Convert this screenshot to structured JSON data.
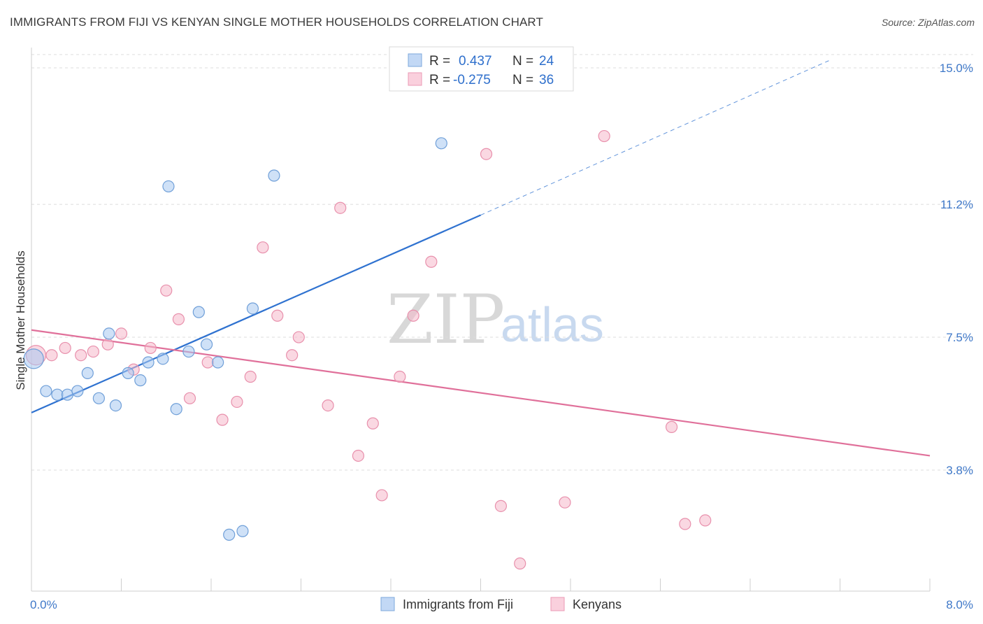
{
  "header": {
    "title": "IMMIGRANTS FROM FIJI VS KENYAN SINGLE MOTHER HOUSEHOLDS CORRELATION CHART",
    "source": "Source: ZipAtlas.com"
  },
  "watermark": {
    "zip": "ZIP",
    "atlas": "atlas"
  },
  "stats_legend": [
    {
      "r_label": "R =",
      "r_value": "0.437",
      "n_label": "N =",
      "n_value": "24",
      "color": "#a8c8f0"
    },
    {
      "r_label": "R =",
      "r_value": "-0.275",
      "n_label": "N =",
      "n_value": "36",
      "color": "#f5b8cb"
    }
  ],
  "chart_data": {
    "type": "scatter",
    "title": "IMMIGRANTS FROM FIJI VS KENYAN SINGLE MOTHER HOUSEHOLDS CORRELATION CHART",
    "xlabel": "",
    "ylabel": "Single Mother Households",
    "xlim": [
      0,
      8
    ],
    "ylim": [
      0,
      15.3
    ],
    "x_tick_labels": [
      {
        "value": 0,
        "label": "0.0%"
      },
      {
        "value": 8,
        "label": "8.0%"
      }
    ],
    "x_minor_ticks": [
      0,
      0.8,
      1.6,
      2.4,
      3.2,
      4.0,
      4.8,
      5.6,
      6.4,
      7.2,
      8.0
    ],
    "y_ticks": [
      {
        "value": 3.8,
        "label": "3.8%"
      },
      {
        "value": 7.5,
        "label": "7.5%"
      },
      {
        "value": 11.2,
        "label": "11.2%"
      },
      {
        "value": 15.0,
        "label": "15.0%"
      }
    ],
    "grid": true,
    "legend_position": "bottom-center",
    "series": [
      {
        "name": "Immigrants from Fiji",
        "color": "#a8c8f0",
        "stroke": "#6f9fd8",
        "trend_color": "#2f72d0",
        "points": [
          {
            "x": 0.02,
            "y": 6.9,
            "big": true
          },
          {
            "x": 0.13,
            "y": 6.0
          },
          {
            "x": 0.23,
            "y": 5.9
          },
          {
            "x": 0.32,
            "y": 5.9
          },
          {
            "x": 0.41,
            "y": 6.0
          },
          {
            "x": 0.5,
            "y": 6.5
          },
          {
            "x": 0.6,
            "y": 5.8
          },
          {
            "x": 0.69,
            "y": 7.6
          },
          {
            "x": 0.75,
            "y": 5.6
          },
          {
            "x": 0.86,
            "y": 6.5
          },
          {
            "x": 0.97,
            "y": 6.3
          },
          {
            "x": 1.04,
            "y": 6.8
          },
          {
            "x": 1.17,
            "y": 6.9
          },
          {
            "x": 1.22,
            "y": 11.7
          },
          {
            "x": 1.29,
            "y": 5.5
          },
          {
            "x": 1.4,
            "y": 7.1
          },
          {
            "x": 1.49,
            "y": 8.2
          },
          {
            "x": 1.56,
            "y": 7.3
          },
          {
            "x": 1.66,
            "y": 6.8
          },
          {
            "x": 1.76,
            "y": 2.0
          },
          {
            "x": 1.88,
            "y": 2.1
          },
          {
            "x": 1.97,
            "y": 8.3
          },
          {
            "x": 2.16,
            "y": 12.0
          },
          {
            "x": 3.65,
            "y": 12.9
          }
        ],
        "trend": {
          "x0": 0,
          "y0": 5.4,
          "x1": 4.0,
          "y1": 10.9,
          "dash_to_x": 7.1,
          "dash_to_y": 15.2
        }
      },
      {
        "name": "Kenyans",
        "color": "#f5b8cb",
        "stroke": "#e890ac",
        "trend_color": "#e0709a",
        "points": [
          {
            "x": 0.04,
            "y": 7.0,
            "big": true
          },
          {
            "x": 0.18,
            "y": 7.0
          },
          {
            "x": 0.3,
            "y": 7.2
          },
          {
            "x": 0.44,
            "y": 7.0
          },
          {
            "x": 0.55,
            "y": 7.1
          },
          {
            "x": 0.68,
            "y": 7.3
          },
          {
            "x": 0.8,
            "y": 7.6
          },
          {
            "x": 0.91,
            "y": 6.6
          },
          {
            "x": 1.06,
            "y": 7.2
          },
          {
            "x": 1.2,
            "y": 8.8
          },
          {
            "x": 1.31,
            "y": 8.0
          },
          {
            "x": 1.41,
            "y": 5.8
          },
          {
            "x": 1.57,
            "y": 6.8
          },
          {
            "x": 1.7,
            "y": 5.2
          },
          {
            "x": 1.83,
            "y": 5.7
          },
          {
            "x": 1.95,
            "y": 6.4
          },
          {
            "x": 2.06,
            "y": 10.0
          },
          {
            "x": 2.19,
            "y": 8.1
          },
          {
            "x": 2.32,
            "y": 7.0
          },
          {
            "x": 2.38,
            "y": 7.5
          },
          {
            "x": 2.64,
            "y": 5.6
          },
          {
            "x": 2.75,
            "y": 11.1
          },
          {
            "x": 2.91,
            "y": 4.2
          },
          {
            "x": 3.04,
            "y": 5.1
          },
          {
            "x": 3.12,
            "y": 3.1
          },
          {
            "x": 3.28,
            "y": 6.4
          },
          {
            "x": 3.4,
            "y": 8.1
          },
          {
            "x": 3.56,
            "y": 9.6
          },
          {
            "x": 4.05,
            "y": 12.6
          },
          {
            "x": 4.18,
            "y": 2.8
          },
          {
            "x": 4.35,
            "y": 1.2
          },
          {
            "x": 4.75,
            "y": 2.9
          },
          {
            "x": 5.1,
            "y": 13.1
          },
          {
            "x": 5.7,
            "y": 5.0
          },
          {
            "x": 5.82,
            "y": 2.3
          },
          {
            "x": 6.0,
            "y": 2.4
          }
        ],
        "trend": {
          "x0": 0,
          "y0": 7.7,
          "x1": 8.0,
          "y1": 4.2
        }
      }
    ]
  }
}
